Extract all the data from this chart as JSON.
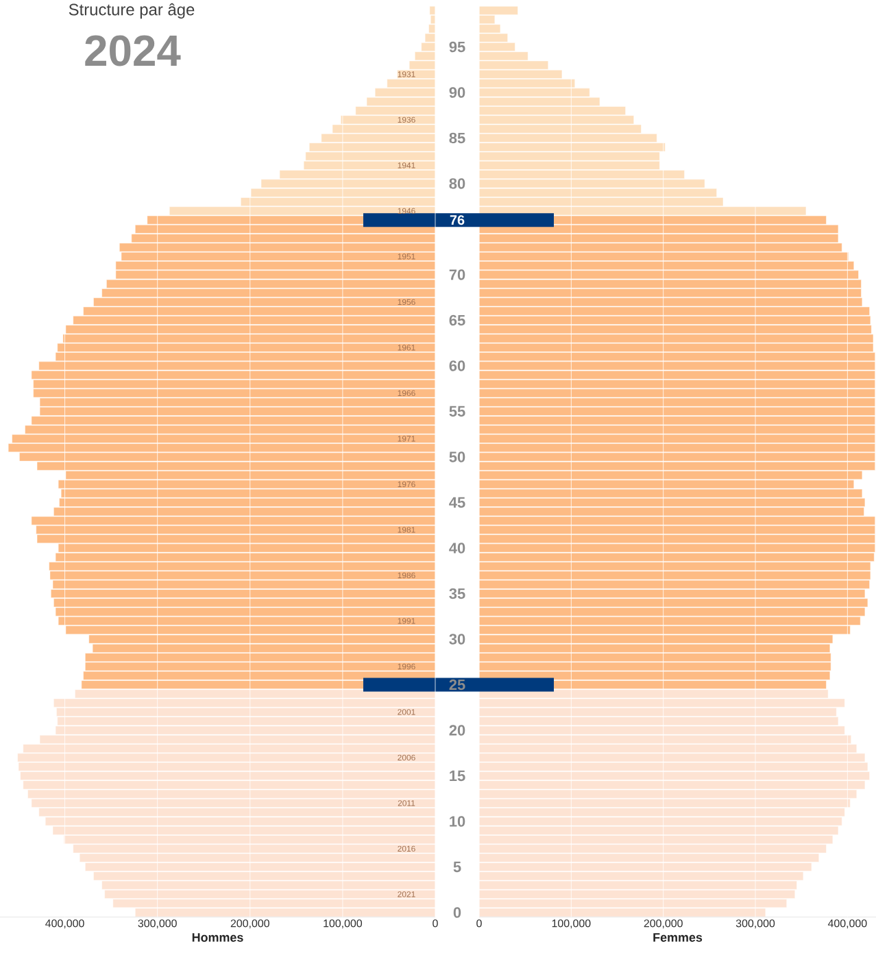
{
  "chart_data": [
    {
      "type": "bar",
      "orientation": "horizontal",
      "title": "Structure par âge",
      "subtitle": "2024",
      "xlabel": "Hommes",
      "x": [
        0,
        1,
        2,
        3,
        4,
        5,
        6,
        7,
        8,
        9,
        10,
        11,
        12,
        13,
        14,
        15,
        16,
        17,
        18,
        19,
        20,
        21,
        22,
        23,
        24,
        25,
        26,
        27,
        28,
        29,
        30,
        31,
        32,
        33,
        34,
        35,
        36,
        37,
        38,
        39,
        40,
        41,
        42,
        43,
        44,
        45,
        46,
        47,
        48,
        49,
        50,
        51,
        52,
        53,
        54,
        55,
        56,
        57,
        58,
        59,
        60,
        61,
        62,
        63,
        64,
        65,
        66,
        67,
        68,
        69,
        70,
        71,
        72,
        73,
        74,
        75,
        76,
        77,
        78,
        79,
        80,
        81,
        82,
        83,
        84,
        85,
        86,
        87,
        88,
        89,
        90,
        91,
        92,
        93,
        94,
        95,
        96,
        97,
        98,
        99
      ],
      "values": [
        324000,
        348000,
        357000,
        360000,
        369000,
        378000,
        384000,
        391000,
        401000,
        413000,
        421000,
        428000,
        436000,
        440000,
        445000,
        448000,
        450000,
        451000,
        445000,
        427000,
        410000,
        408000,
        409000,
        412000,
        389000,
        382000,
        380000,
        378000,
        378000,
        370000,
        374000,
        399000,
        407000,
        410000,
        412000,
        415000,
        413000,
        416000,
        417000,
        410000,
        407000,
        430000,
        431000,
        436000,
        412000,
        406000,
        404000,
        407000,
        399000,
        430000,
        449000,
        461000,
        457000,
        443000,
        436000,
        427000,
        427000,
        434000,
        434000,
        436000,
        428000,
        410000,
        408000,
        402000,
        399000,
        391000,
        380000,
        369000,
        360000,
        355000,
        345000,
        345000,
        339000,
        341000,
        328000,
        324000,
        311000,
        287000,
        210000,
        199000,
        188000,
        168000,
        142000,
        140000,
        136000,
        123000,
        111000,
        102000,
        86000,
        74000,
        65000,
        52000,
        41000,
        28000,
        22000,
        15000,
        11000,
        7000,
        5000,
        6000
      ],
      "colors": [
        "#fde3d3",
        "#fde3d3",
        "#fde3d3",
        "#fde3d3",
        "#fde3d3",
        "#fde3d3",
        "#fde3d3",
        "#fde3d3",
        "#fde3d3",
        "#fde3d3",
        "#fde3d3",
        "#fde3d3",
        "#fde3d3",
        "#fde3d3",
        "#fde3d3",
        "#fde3d3",
        "#fde3d3",
        "#fde3d3",
        "#fde3d3",
        "#fde3d3",
        "#fde3d3",
        "#fde3d3",
        "#fde3d3",
        "#fde3d3",
        "#fde3d3",
        "#fdbb84",
        "#fdbb84",
        "#fdbb84",
        "#fdbb84",
        "#fdbb84",
        "#fdbb84",
        "#fdbb84",
        "#fdbb84",
        "#fdbb84",
        "#fdbb84",
        "#fdbb84",
        "#fdbb84",
        "#fdbb84",
        "#fdbb84",
        "#fdbb84",
        "#fdbb84",
        "#fdbb84",
        "#fdbb84",
        "#fdbb84",
        "#fdbb84",
        "#fdbb84",
        "#fdbb84",
        "#fdbb84",
        "#fdbb84",
        "#fdbb84",
        "#fdbb84",
        "#fdbb84",
        "#fdbb84",
        "#fdbb84",
        "#fdbb84",
        "#fdbb84",
        "#fdbb84",
        "#fdbb84",
        "#fdbb84",
        "#fdbb84",
        "#fdbb84",
        "#fdbb84",
        "#fdbb84",
        "#fdbb84",
        "#fdbb84",
        "#fdbb84",
        "#fdbb84",
        "#fdbb84",
        "#fdbb84",
        "#fdbb84",
        "#fdbb84",
        "#fdbb84",
        "#fdbb84",
        "#fdbb84",
        "#fdbb84",
        "#fdbb84",
        "#fdbb84",
        "#fddfbd",
        "#fddfbd",
        "#fddfbd",
        "#fddfbd",
        "#fddfbd",
        "#fddfbd",
        "#fddfbd",
        "#fddfbd",
        "#fddfbd",
        "#fddfbd",
        "#fddfbd",
        "#fddfbd",
        "#fddfbd",
        "#fddfbd",
        "#fddfbd",
        "#fddfbd",
        "#fddfbd",
        "#fddfbd",
        "#fddfbd",
        "#fddfbd",
        "#fddfbd",
        "#fddfbd",
        "#fddfbd"
      ],
      "xlim": [
        470000,
        0
      ],
      "ylim": [
        -0.5,
        99.5
      ],
      "xticks": [
        {
          "value": 400000,
          "label": "400,000"
        },
        {
          "value": 300000,
          "label": "300,000"
        },
        {
          "value": 200000,
          "label": "200,000"
        },
        {
          "value": 100000,
          "label": "100,000"
        },
        0
      ],
      "yticks": [
        0,
        5,
        10,
        15,
        20,
        25,
        30,
        35,
        40,
        45,
        50,
        55,
        60,
        65,
        70,
        80,
        85,
        90,
        95
      ],
      "grid": "x",
      "ref_lines": [
        {
          "axis": "y",
          "value": 76,
          "label": "76",
          "color": "#003a7d"
        },
        {
          "axis": "y",
          "value": 25,
          "color": "#003a7d"
        }
      ],
      "y2lim": [
        2023.5,
        1923.5
      ],
      "y2ticks": [
        1931,
        1936,
        1941,
        1946,
        1951,
        1956,
        1961,
        1966,
        1971,
        1976,
        1981,
        1986,
        1991,
        1996,
        2001,
        2006,
        2011,
        2016,
        2021
      ]
    },
    {
      "type": "bar",
      "orientation": "horizontal",
      "xlabel": "Femmes",
      "x": [
        0,
        1,
        2,
        3,
        4,
        5,
        6,
        7,
        8,
        9,
        10,
        11,
        12,
        13,
        14,
        15,
        16,
        17,
        18,
        19,
        20,
        21,
        22,
        23,
        24,
        25,
        26,
        27,
        28,
        29,
        30,
        31,
        32,
        33,
        34,
        35,
        36,
        37,
        38,
        39,
        40,
        41,
        42,
        43,
        44,
        45,
        46,
        47,
        48,
        49,
        50,
        51,
        52,
        53,
        54,
        55,
        56,
        57,
        58,
        59,
        60,
        61,
        62,
        63,
        64,
        65,
        66,
        67,
        68,
        69,
        70,
        71,
        72,
        73,
        74,
        75,
        76,
        77,
        78,
        79,
        80,
        81,
        82,
        83,
        84,
        85,
        86,
        87,
        88,
        89,
        90,
        91,
        92,
        93,
        94,
        95,
        96,
        97,
        98,
        99
      ],
      "values": [
        311000,
        334000,
        343000,
        345000,
        352000,
        361000,
        369000,
        377000,
        384000,
        390000,
        394000,
        397000,
        403000,
        410000,
        419000,
        424000,
        422000,
        419000,
        410000,
        404000,
        397000,
        390000,
        388000,
        397000,
        379000,
        377000,
        381000,
        382000,
        382000,
        381000,
        384000,
        403000,
        414000,
        419000,
        422000,
        419000,
        424000,
        425000,
        425000,
        429000,
        430000,
        430000,
        430000,
        430000,
        418000,
        419000,
        416000,
        407000,
        416000,
        430000,
        430000,
        430000,
        430000,
        430000,
        430000,
        430000,
        430000,
        430000,
        430000,
        430000,
        430000,
        430000,
        428000,
        428000,
        426000,
        425000,
        424000,
        416000,
        415000,
        415000,
        412000,
        407000,
        401000,
        394000,
        390000,
        390000,
        377000,
        355000,
        265000,
        258000,
        245000,
        223000,
        196000,
        196000,
        202000,
        193000,
        176000,
        168000,
        159000,
        131000,
        120000,
        104000,
        90000,
        75000,
        53000,
        39000,
        31000,
        23000,
        17000,
        42000
      ],
      "colors": [
        "#fde3d3",
        "#fde3d3",
        "#fde3d3",
        "#fde3d3",
        "#fde3d3",
        "#fde3d3",
        "#fde3d3",
        "#fde3d3",
        "#fde3d3",
        "#fde3d3",
        "#fde3d3",
        "#fde3d3",
        "#fde3d3",
        "#fde3d3",
        "#fde3d3",
        "#fde3d3",
        "#fde3d3",
        "#fde3d3",
        "#fde3d3",
        "#fde3d3",
        "#fde3d3",
        "#fde3d3",
        "#fde3d3",
        "#fde3d3",
        "#fde3d3",
        "#fdbb84",
        "#fdbb84",
        "#fdbb84",
        "#fdbb84",
        "#fdbb84",
        "#fdbb84",
        "#fdbb84",
        "#fdbb84",
        "#fdbb84",
        "#fdbb84",
        "#fdbb84",
        "#fdbb84",
        "#fdbb84",
        "#fdbb84",
        "#fdbb84",
        "#fdbb84",
        "#fdbb84",
        "#fdbb84",
        "#fdbb84",
        "#fdbb84",
        "#fdbb84",
        "#fdbb84",
        "#fdbb84",
        "#fdbb84",
        "#fdbb84",
        "#fdbb84",
        "#fdbb84",
        "#fdbb84",
        "#fdbb84",
        "#fdbb84",
        "#fdbb84",
        "#fdbb84",
        "#fdbb84",
        "#fdbb84",
        "#fdbb84",
        "#fdbb84",
        "#fdbb84",
        "#fdbb84",
        "#fdbb84",
        "#fdbb84",
        "#fdbb84",
        "#fdbb84",
        "#fdbb84",
        "#fdbb84",
        "#fdbb84",
        "#fdbb84",
        "#fdbb84",
        "#fdbb84",
        "#fdbb84",
        "#fdbb84",
        "#fdbb84",
        "#fdbb84",
        "#fddfbd",
        "#fddfbd",
        "#fddfbd",
        "#fddfbd",
        "#fddfbd",
        "#fddfbd",
        "#fddfbd",
        "#fddfbd",
        "#fddfbd",
        "#fddfbd",
        "#fddfbd",
        "#fddfbd",
        "#fddfbd",
        "#fddfbd",
        "#fddfbd",
        "#fddfbd",
        "#fddfbd",
        "#fddfbd",
        "#fddfbd",
        "#fddfbd",
        "#fddfbd",
        "#fddfbd",
        "#fddfbd"
      ],
      "xlim": [
        0,
        431000
      ],
      "ylim": [
        -0.5,
        99.5
      ],
      "xticks": [
        0,
        {
          "value": 100000,
          "label": "100,000"
        },
        {
          "value": 200000,
          "label": "200,000"
        },
        {
          "value": 300000,
          "label": "300,000"
        },
        {
          "value": 400000,
          "label": "400,000"
        }
      ],
      "yticks": [
        0,
        5,
        10,
        15,
        20,
        25,
        30,
        35,
        40,
        45,
        50,
        55,
        60,
        65,
        70,
        80,
        85,
        90,
        95
      ],
      "tick_labels": "x",
      "grid": "x"
    }
  ]
}
